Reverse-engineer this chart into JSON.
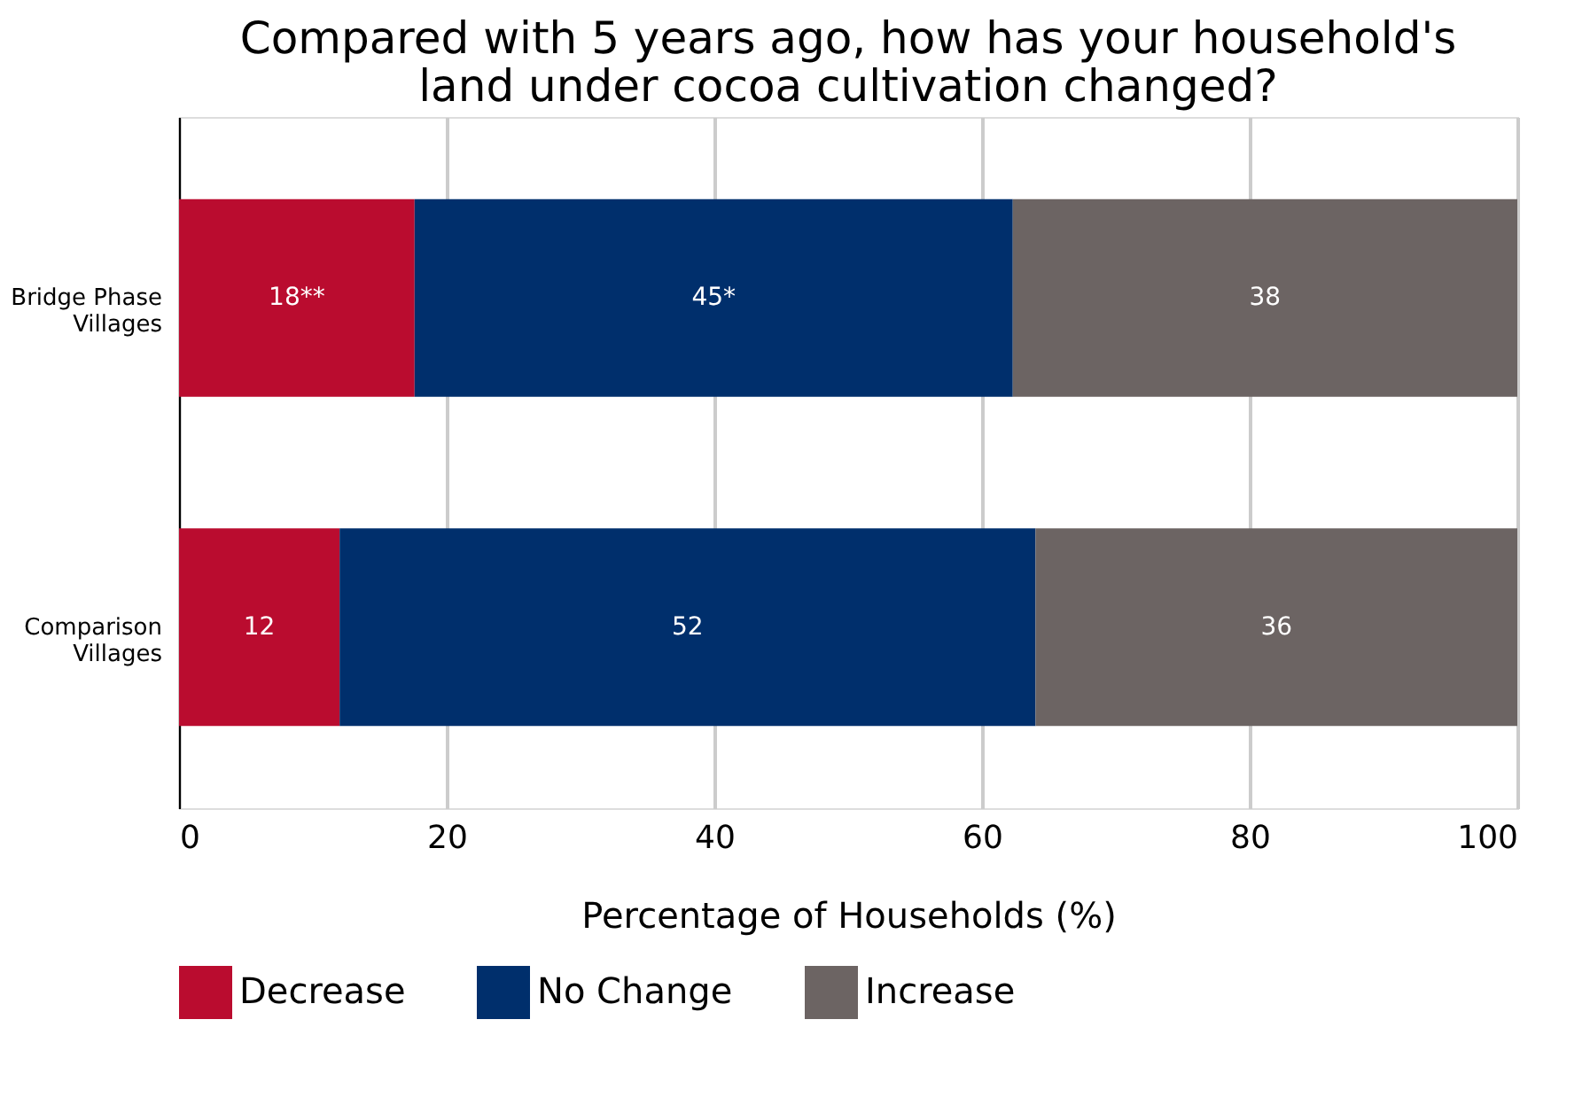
{
  "chart_data": {
    "type": "bar",
    "orientation": "horizontal",
    "stacked": true,
    "title": "Compared with 5 years ago, how has your household's\nland under cocoa cultivation changed?",
    "xlabel": "Percentage of Households (%)",
    "categories": [
      "Bridge Phase\nVillages",
      "Comparison\nVillages"
    ],
    "series": [
      {
        "name": "Decrease",
        "color": "#ba0c2f",
        "values": [
          17.6,
          12
        ],
        "value_labels": [
          "18**",
          "12"
        ]
      },
      {
        "name": "No Change",
        "color": "#002f6c",
        "values": [
          44.7,
          52
        ],
        "value_labels": [
          "45*",
          "52"
        ]
      },
      {
        "name": "Increase",
        "color": "#6c6463",
        "values": [
          37.7,
          36
        ],
        "value_labels": [
          "38",
          "36"
        ]
      }
    ],
    "xlim": [
      0,
      100
    ],
    "xticks": [
      0,
      20,
      40,
      60,
      80,
      100
    ],
    "grid": "x",
    "legend": "bottom"
  }
}
